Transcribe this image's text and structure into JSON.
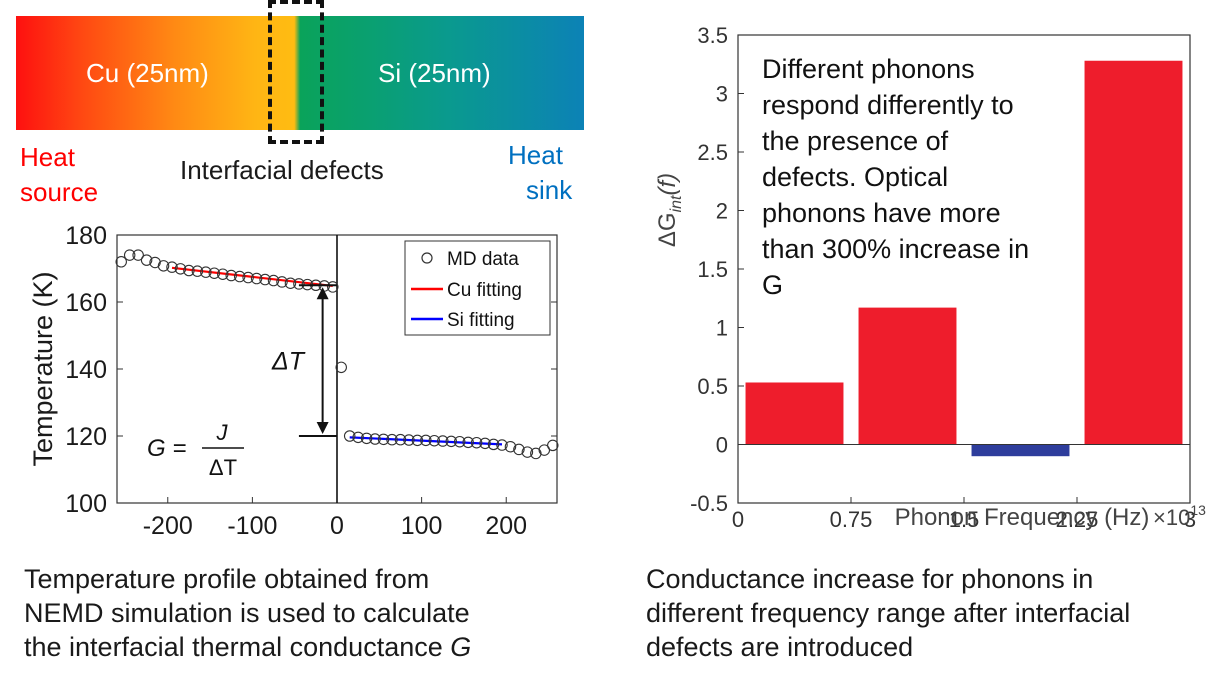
{
  "schematic": {
    "cu_label": "Cu (25nm)",
    "si_label": "Si (25nm)",
    "heat_source_line1": "Heat",
    "heat_source_line2": "source",
    "heat_sink_line1": "Heat",
    "heat_sink_line2": "sink",
    "defects_label": "Interfacial defects"
  },
  "colors": {
    "md_marker": "#333333",
    "cu_fit": "#ff0000",
    "si_fit": "#0000ff",
    "bar_positive": "#ee1d2c",
    "bar_negative": "#2e3d9c",
    "heat_source": "#fe0000",
    "heat_sink": "#0070c0"
  },
  "left_caption": [
    "Temperature profile obtained from",
    "NEMD simulation is used to calculate",
    "the interfacial thermal conductance "
  ],
  "left_caption_italic": "G",
  "right_caption": [
    "Conductance increase for phonons in",
    "different frequency range after interfacial",
    "defects are introduced"
  ],
  "chart_data": [
    {
      "type": "scatter",
      "ylabel": "Temperature (K)",
      "xlim": [
        -260,
        260
      ],
      "ylim": [
        100,
        180
      ],
      "x_ticks": [
        "-200",
        "-100",
        "0",
        "100",
        "200"
      ],
      "y_ticks": [
        "100",
        "120",
        "140",
        "160",
        "180"
      ],
      "legend": [
        "MD data",
        "Cu fitting",
        "Si fitting"
      ],
      "legend_position": "top-right",
      "annotations": {
        "delta_t": "ΔT",
        "formula_lhs": "G =",
        "formula_num": "J",
        "formula_den": "ΔT"
      },
      "md_points": [
        [
          -255,
          172.0
        ],
        [
          -245,
          174.0
        ],
        [
          -235,
          174.0
        ],
        [
          -225,
          172.5
        ],
        [
          -215,
          171.8
        ],
        [
          -205,
          170.8
        ],
        [
          -195,
          170.4
        ],
        [
          -185,
          169.9
        ],
        [
          -175,
          169.4
        ],
        [
          -165,
          169.2
        ],
        [
          -155,
          168.9
        ],
        [
          -145,
          168.6
        ],
        [
          -135,
          168.3
        ],
        [
          -125,
          167.9
        ],
        [
          -115,
          167.6
        ],
        [
          -105,
          167.3
        ],
        [
          -95,
          167.0
        ],
        [
          -85,
          166.7
        ],
        [
          -75,
          166.4
        ],
        [
          -65,
          166.0
        ],
        [
          -55,
          165.6
        ],
        [
          -45,
          165.4
        ],
        [
          -35,
          165.2
        ],
        [
          -25,
          165.0
        ],
        [
          -15,
          164.8
        ],
        [
          -5,
          164.5
        ],
        [
          5,
          140.5
        ],
        [
          15,
          120.0
        ],
        [
          25,
          119.6
        ],
        [
          35,
          119.3
        ],
        [
          45,
          119.1
        ],
        [
          55,
          119.0
        ],
        [
          65,
          118.9
        ],
        [
          75,
          118.9
        ],
        [
          85,
          118.8
        ],
        [
          95,
          118.7
        ],
        [
          105,
          118.7
        ],
        [
          115,
          118.6
        ],
        [
          125,
          118.5
        ],
        [
          135,
          118.4
        ],
        [
          145,
          118.3
        ],
        [
          155,
          118.1
        ],
        [
          165,
          118.0
        ],
        [
          175,
          117.8
        ],
        [
          185,
          117.5
        ],
        [
          195,
          117.3
        ],
        [
          205,
          116.8
        ],
        [
          215,
          116.0
        ],
        [
          225,
          115.2
        ],
        [
          235,
          114.8
        ],
        [
          245,
          115.8
        ],
        [
          255,
          117.2
        ]
      ],
      "cu_fit": {
        "x": [
          -195,
          -5
        ],
        "y": [
          170.2,
          164.8
        ]
      },
      "si_fit": {
        "x": [
          15,
          195
        ],
        "y": [
          119.6,
          117.5
        ]
      },
      "interface_level_high": 165,
      "interface_level_low": 120
    },
    {
      "type": "bar",
      "ylabel_main": "ΔG",
      "ylabel_sub": "int",
      "ylabel_tail": "(f)",
      "xlabel": "Phonon Frequency (Hz)",
      "x_multiplier": "×10",
      "x_multiplier_exp": "13",
      "xlim": [
        0,
        3
      ],
      "ylim": [
        -0.5,
        3.5
      ],
      "x_ticks": [
        "0",
        "0.75",
        "1.5",
        "2.25",
        "3"
      ],
      "y_ticks": [
        "-0.5",
        "0",
        "0.5",
        "1",
        "1.5",
        "2",
        "2.5",
        "3",
        "3.5"
      ],
      "bars": [
        {
          "x0": 0.05,
          "x1": 0.7,
          "value": 0.53
        },
        {
          "x0": 0.8,
          "x1": 1.45,
          "value": 1.17
        },
        {
          "x0": 1.55,
          "x1": 2.2,
          "value": -0.1
        },
        {
          "x0": 2.3,
          "x1": 2.95,
          "value": 3.28
        }
      ],
      "annotation_lines": [
        "Different phonons",
        "respond differently to",
        "the presence of",
        "defects. Optical",
        "phonons have more",
        "than 300% increase in",
        "G"
      ]
    }
  ]
}
